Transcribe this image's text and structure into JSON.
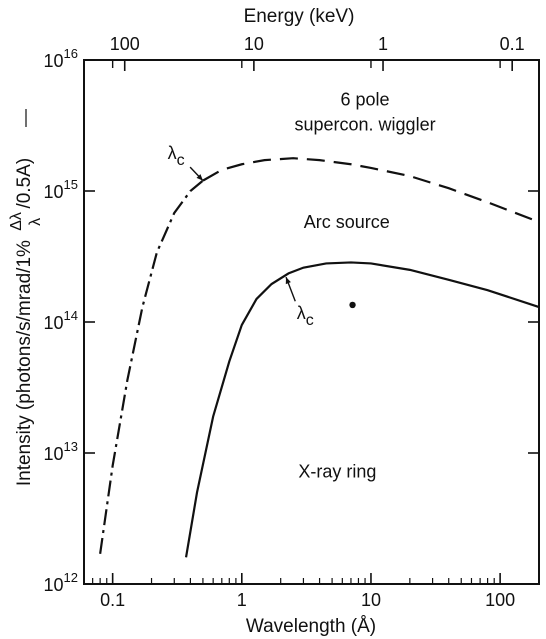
{
  "chart_data": {
    "type": "line",
    "xlabel": "Wavelength (Å)",
    "x2label": "Energy (keV)",
    "ylabel": "Intensity (photons/s/mrad/1%",
    "ylabel_frac_num": "Δλ",
    "ylabel_frac_den": "λ",
    "ylabel_tail": "/0.5A)",
    "xscale": "log",
    "yscale": "log",
    "xlim": [
      0.06,
      200
    ],
    "ylim": [
      1000000000000.0,
      1e+16
    ],
    "x_ticks": [
      {
        "value": 0.1,
        "label": "0.1"
      },
      {
        "value": 1,
        "label": "1"
      },
      {
        "value": 10,
        "label": "10"
      },
      {
        "value": 100,
        "label": "100"
      }
    ],
    "y_ticks": [
      {
        "value": 1000000000000.0,
        "base": "10",
        "exp": "12"
      },
      {
        "value": 10000000000000.0,
        "base": "10",
        "exp": "13"
      },
      {
        "value": 100000000000000.0,
        "base": "10",
        "exp": "14"
      },
      {
        "value": 1000000000000000.0,
        "base": "10",
        "exp": "15"
      },
      {
        "value": 1e+16,
        "base": "10",
        "exp": "16"
      }
    ],
    "x2_ticks": [
      {
        "wavelength": 0.124,
        "label": "100"
      },
      {
        "wavelength": 1.24,
        "label": "10"
      },
      {
        "wavelength": 12.4,
        "label": "1"
      },
      {
        "wavelength": 124,
        "label": "0.1"
      }
    ],
    "series": [
      {
        "style": "dash-dot-then-dash",
        "break_x": 0.5,
        "x": [
          0.08,
          0.1,
          0.13,
          0.17,
          0.22,
          0.3,
          0.4,
          0.5,
          0.7,
          1,
          1.5,
          2.5,
          4,
          7,
          10,
          20,
          40,
          80,
          200
        ],
        "y": [
          1700000000000.0,
          8000000000000.0,
          36000000000000.0,
          130000000000000.0,
          340000000000000.0,
          680000000000000.0,
          1000000000000000.0,
          1200000000000000.0,
          1450000000000000.0,
          1600000000000000.0,
          1720000000000000.0,
          1780000000000000.0,
          1720000000000000.0,
          1600000000000000.0,
          1500000000000000.0,
          1300000000000000.0,
          1050000000000000.0,
          820000000000000.0,
          580000000000000.0
        ]
      },
      {
        "style": "solid",
        "x": [
          0.37,
          0.45,
          0.6,
          0.8,
          1,
          1.3,
          1.7,
          2.3,
          3,
          4.5,
          7,
          10,
          20,
          40,
          80,
          200
        ],
        "y": [
          1600000000000.0,
          5000000000000.0,
          19000000000000.0,
          50000000000000.0,
          95000000000000.0,
          150000000000000.0,
          195000000000000.0,
          235000000000000.0,
          260000000000000.0,
          280000000000000.0,
          285000000000000.0,
          280000000000000.0,
          250000000000000.0,
          210000000000000.0,
          175000000000000.0,
          130000000000000.0
        ]
      }
    ],
    "annotations": [
      {
        "text": "6 pole",
        "x": 9,
        "y": 4500000000000000.0
      },
      {
        "text": "supercon. wiggler",
        "x": 9,
        "y": 2900000000000000.0
      },
      {
        "text": "Arc source",
        "x": 6.5,
        "y": 520000000000000.0
      },
      {
        "text": "X-ray ring",
        "x": 5.5,
        "y": 6500000000000.0
      },
      {
        "text": "λc",
        "x": 0.31,
        "y": 1750000000000000.0,
        "arrow_to": [
          0.5,
          1200000000000000.0
        ]
      },
      {
        "text": "λc",
        "x": 3.1,
        "y": 105000000000000.0,
        "arrow_to": [
          2.2,
          220000000000000.0
        ]
      }
    ],
    "marker": {
      "x": 7.2,
      "y": 135000000000000.0
    }
  }
}
